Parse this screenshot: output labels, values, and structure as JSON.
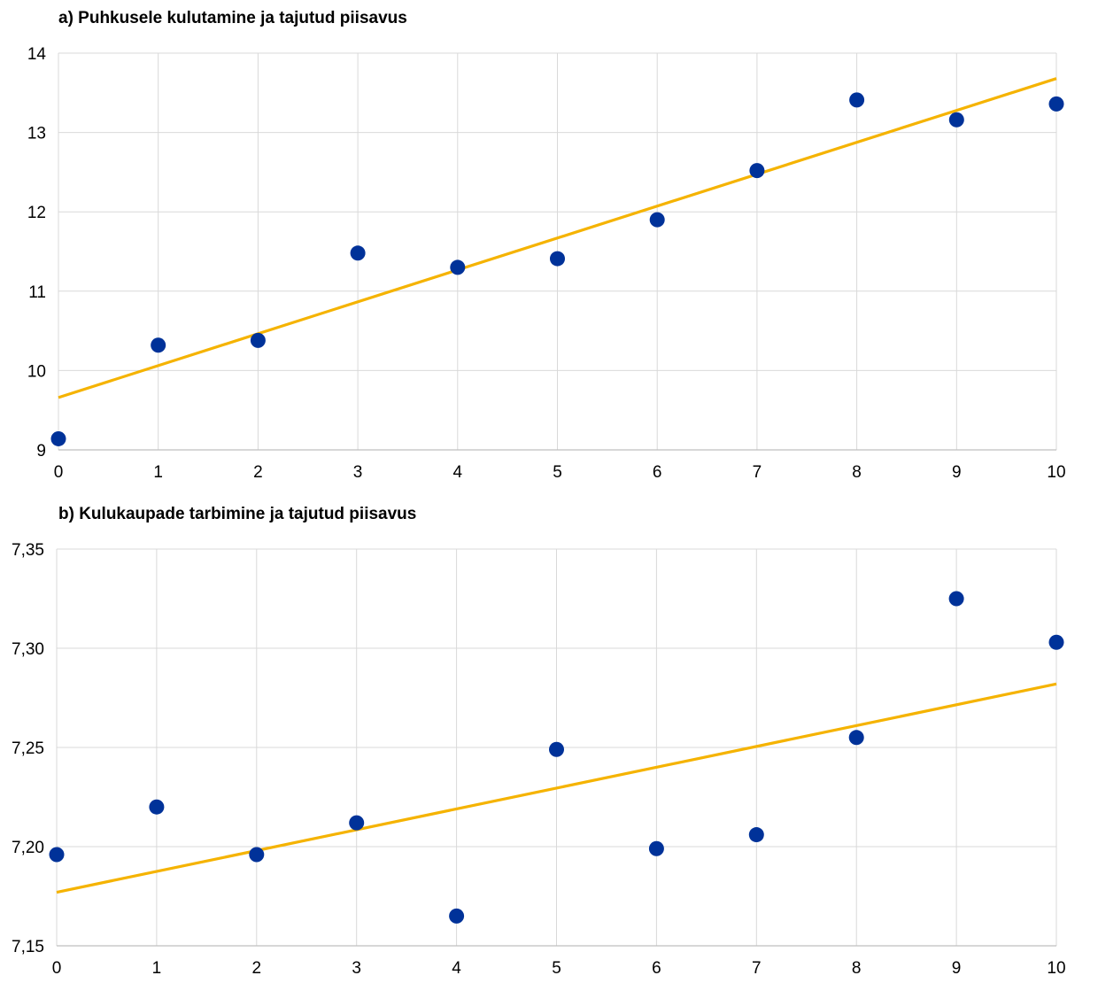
{
  "colors": {
    "points": "#003299",
    "trend": "#F5B300",
    "grid": "#D9D9D9"
  },
  "chart_data": [
    {
      "type": "scatter",
      "title": "a) Puhkusele kulutamine ja tajutud piisavus",
      "x": [
        0,
        1,
        2,
        3,
        4,
        5,
        6,
        7,
        8,
        9,
        10
      ],
      "y": [
        9.14,
        10.32,
        10.38,
        11.48,
        11.3,
        11.41,
        11.9,
        12.52,
        13.41,
        13.16,
        13.36
      ],
      "trendline": {
        "x": [
          0,
          10
        ],
        "y": [
          9.66,
          13.68
        ]
      },
      "xlim": [
        0,
        10
      ],
      "ylim": [
        9,
        14
      ],
      "xticks": [
        "0",
        "1",
        "2",
        "3",
        "4",
        "5",
        "6",
        "7",
        "8",
        "9",
        "10"
      ],
      "yticks": [
        "9",
        "10",
        "11",
        "12",
        "13",
        "14"
      ],
      "grid": true
    },
    {
      "type": "scatter",
      "title": "b) Kulukaupade tarbimine ja tajutud piisavus",
      "x": [
        0,
        1,
        2,
        3,
        4,
        5,
        6,
        7,
        8,
        9,
        10
      ],
      "y": [
        7.196,
        7.22,
        7.196,
        7.212,
        7.165,
        7.249,
        7.199,
        7.206,
        7.255,
        7.325,
        7.303
      ],
      "trendline": {
        "x": [
          0,
          10
        ],
        "y": [
          7.177,
          7.282
        ]
      },
      "xlim": [
        0,
        10
      ],
      "ylim": [
        7.15,
        7.35
      ],
      "xticks": [
        "0",
        "1",
        "2",
        "3",
        "4",
        "5",
        "6",
        "7",
        "8",
        "9",
        "10"
      ],
      "yticks": [
        "7,15",
        "7,20",
        "7,25",
        "7,30",
        "7,35"
      ],
      "grid": true
    }
  ]
}
